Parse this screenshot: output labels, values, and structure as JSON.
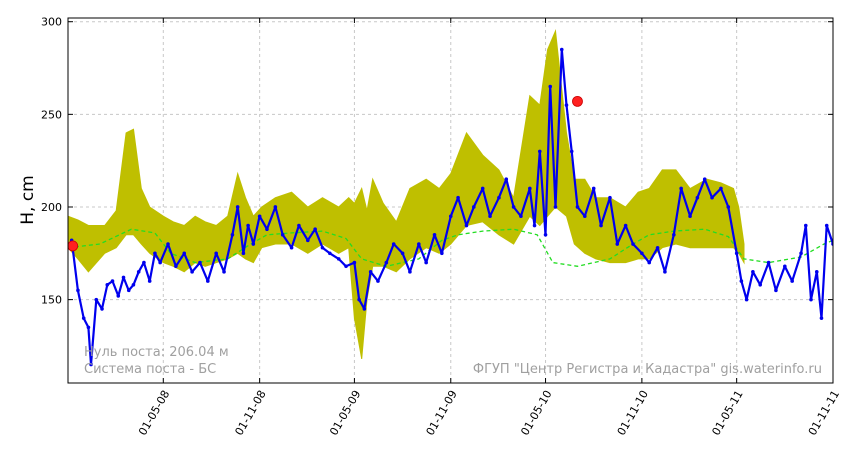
{
  "chart_data": {
    "type": "line",
    "title": "",
    "xlabel": "",
    "ylabel": "H, cm",
    "ylim": [
      105,
      302
    ],
    "xlim": [
      "2007-11-01",
      "2011-11-01"
    ],
    "yticks": [
      150,
      200,
      250,
      300
    ],
    "xticks": [
      "01-05-08",
      "01-11-08",
      "01-05-09",
      "01-11-09",
      "01-05-10",
      "01-11-10",
      "01-05-11",
      "01-11-11"
    ],
    "xtick_dates": [
      "2008-05-01",
      "2008-11-01",
      "2009-05-01",
      "2009-11-01",
      "2010-05-01",
      "2010-11-01",
      "2011-05-01",
      "2011-11-01"
    ],
    "grid": true,
    "annotations": {
      "zero": "Нуль поста: 206.04 м",
      "system": "Система поста - БС",
      "source": "ФГУП \"Центр Регистра и Кадастра\"   gis.waterinfo.ru"
    },
    "colors": {
      "band": "#bfbf00",
      "observed": "#0000ee",
      "norm": "#22dd22",
      "marker": "#ff2020"
    },
    "series": [
      {
        "role": "band",
        "color": "#bfbf00",
        "x": [
          "2007-11-01",
          "2007-11-20",
          "2007-12-10",
          "2008-01-10",
          "2008-02-01",
          "2008-02-20",
          "2008-03-05",
          "2008-03-20",
          "2008-04-05",
          "2008-05-01",
          "2008-05-20",
          "2008-06-10",
          "2008-07-01",
          "2008-07-20",
          "2008-08-10",
          "2008-09-01",
          "2008-09-20",
          "2008-10-05",
          "2008-10-20",
          "2008-11-05",
          "2008-12-01",
          "2009-01-01",
          "2009-02-01",
          "2009-03-01",
          "2009-04-01",
          "2009-04-20",
          "2009-05-01",
          "2009-05-15",
          "2009-05-25",
          "2009-06-05",
          "2009-06-25",
          "2009-07-20",
          "2009-08-15",
          "2009-09-15",
          "2009-10-10",
          "2009-11-01",
          "2009-12-01",
          "2010-01-01",
          "2010-02-01",
          "2010-03-01",
          "2010-04-01",
          "2010-04-20",
          "2010-05-05",
          "2010-05-20",
          "2010-06-10",
          "2010-06-25",
          "2010-07-15",
          "2010-08-05",
          "2010-09-01",
          "2010-10-01",
          "2010-10-25",
          "2010-11-15",
          "2010-12-10",
          "2011-01-05",
          "2011-02-01",
          "2011-03-05",
          "2011-04-01",
          "2011-04-25",
          "2011-05-05",
          "2011-05-15"
        ],
        "upper": [
          195,
          193,
          190,
          190,
          198,
          240,
          242,
          210,
          200,
          195,
          192,
          190,
          195,
          192,
          190,
          195,
          218,
          205,
          195,
          200,
          205,
          208,
          200,
          205,
          200,
          205,
          202,
          210,
          198,
          215,
          202,
          192,
          210,
          215,
          210,
          218,
          240,
          228,
          220,
          205,
          260,
          255,
          285,
          295,
          240,
          215,
          215,
          205,
          205,
          200,
          208,
          210,
          220,
          220,
          210,
          215,
          213,
          210,
          200,
          180
        ],
        "lower": [
          178,
          172,
          165,
          175,
          178,
          185,
          185,
          180,
          175,
          170,
          168,
          165,
          170,
          168,
          170,
          172,
          175,
          172,
          170,
          178,
          180,
          180,
          175,
          180,
          175,
          178,
          140,
          118,
          150,
          168,
          168,
          165,
          172,
          178,
          175,
          180,
          190,
          192,
          185,
          180,
          195,
          190,
          195,
          200,
          195,
          180,
          175,
          172,
          170,
          170,
          172,
          172,
          178,
          180,
          178,
          178,
          178,
          178,
          175,
          170
        ]
      },
      {
        "role": "norm",
        "color": "#22dd22",
        "x": [
          "2007-11-01",
          "2008-01-01",
          "2008-03-01",
          "2008-04-15",
          "2008-05-15",
          "2008-07-01",
          "2008-09-01",
          "2008-10-15",
          "2008-11-15",
          "2009-01-01",
          "2009-03-01",
          "2009-04-15",
          "2009-05-15",
          "2009-07-01",
          "2009-09-01",
          "2009-10-15",
          "2009-11-15",
          "2010-01-01",
          "2010-03-01",
          "2010-04-15",
          "2010-05-15",
          "2010-07-01",
          "2010-09-01",
          "2010-10-15",
          "2010-11-15",
          "2011-01-01",
          "2011-03-01",
          "2011-04-15",
          "2011-05-15",
          "2011-07-01",
          "2011-09-01",
          "2011-10-15",
          "2011-11-01"
        ],
        "values": [
          178,
          180,
          188,
          186,
          175,
          170,
          172,
          180,
          185,
          186,
          187,
          183,
          172,
          168,
          172,
          182,
          185,
          187,
          188,
          185,
          170,
          168,
          172,
          180,
          185,
          187,
          188,
          184,
          172,
          170,
          173,
          180,
          182
        ]
      },
      {
        "role": "observed",
        "color": "#0000ee",
        "x": [
          "2007-11-01",
          "2007-11-08",
          "2007-11-20",
          "2007-12-01",
          "2007-12-10",
          "2007-12-15",
          "2007-12-25",
          "2008-01-05",
          "2008-01-15",
          "2008-01-25",
          "2008-02-05",
          "2008-02-15",
          "2008-02-25",
          "2008-03-05",
          "2008-03-15",
          "2008-03-25",
          "2008-04-05",
          "2008-04-15",
          "2008-04-25",
          "2008-05-10",
          "2008-05-25",
          "2008-06-10",
          "2008-06-25",
          "2008-07-10",
          "2008-07-25",
          "2008-08-10",
          "2008-08-25",
          "2008-09-10",
          "2008-09-20",
          "2008-10-01",
          "2008-10-10",
          "2008-10-20",
          "2008-11-01",
          "2008-11-15",
          "2008-12-01",
          "2008-12-15",
          "2009-01-01",
          "2009-01-15",
          "2009-02-01",
          "2009-02-15",
          "2009-03-01",
          "2009-03-15",
          "2009-04-01",
          "2009-04-15",
          "2009-05-01",
          "2009-05-10",
          "2009-05-20",
          "2009-06-01",
          "2009-06-15",
          "2009-07-01",
          "2009-07-15",
          "2009-08-01",
          "2009-08-15",
          "2009-09-01",
          "2009-09-15",
          "2009-10-01",
          "2009-10-15",
          "2009-11-01",
          "2009-11-15",
          "2009-12-01",
          "2009-12-15",
          "2010-01-01",
          "2010-01-15",
          "2010-02-01",
          "2010-02-15",
          "2010-03-01",
          "2010-03-15",
          "2010-04-01",
          "2010-04-10",
          "2010-04-20",
          "2010-05-01",
          "2010-05-10",
          "2010-05-20",
          "2010-06-01",
          "2010-06-10",
          "2010-06-20",
          "2010-07-01",
          "2010-07-15",
          "2010-08-01",
          "2010-08-15",
          "2010-09-01",
          "2010-09-15",
          "2010-10-01",
          "2010-10-15",
          "2010-11-01",
          "2010-11-15",
          "2010-12-01",
          "2010-12-15",
          "2011-01-01",
          "2011-01-15",
          "2011-02-01",
          "2011-02-15",
          "2011-03-01",
          "2011-03-15",
          "2011-04-01",
          "2011-04-15",
          "2011-05-01",
          "2011-05-10",
          "2011-05-20",
          "2011-06-01",
          "2011-06-15",
          "2011-07-01",
          "2011-07-15",
          "2011-08-01",
          "2011-08-15",
          "2011-09-01",
          "2011-09-10",
          "2011-09-20",
          "2011-10-01",
          "2011-10-10",
          "2011-10-20",
          "2011-11-01"
        ],
        "values": [
          178,
          182,
          155,
          140,
          135,
          115,
          150,
          145,
          158,
          160,
          152,
          162,
          155,
          158,
          165,
          170,
          160,
          175,
          170,
          180,
          168,
          175,
          165,
          170,
          160,
          175,
          165,
          185,
          200,
          175,
          190,
          180,
          195,
          188,
          200,
          185,
          178,
          190,
          182,
          188,
          178,
          175,
          172,
          168,
          170,
          150,
          145,
          165,
          160,
          170,
          180,
          175,
          165,
          180,
          170,
          185,
          175,
          195,
          205,
          190,
          200,
          210,
          195,
          205,
          215,
          200,
          195,
          210,
          190,
          230,
          185,
          265,
          200,
          285,
          255,
          230,
          200,
          195,
          210,
          190,
          205,
          180,
          190,
          180,
          175,
          170,
          178,
          165,
          185,
          210,
          195,
          205,
          215,
          205,
          210,
          200,
          175,
          160,
          150,
          165,
          158,
          170,
          155,
          168,
          160,
          175,
          190,
          150,
          165,
          140,
          190,
          180
        ]
      },
      {
        "role": "marker",
        "color": "#ff2020",
        "points": [
          {
            "x": "2007-11-10",
            "y": 179
          },
          {
            "x": "2010-07-01",
            "y": 257
          }
        ]
      }
    ]
  }
}
